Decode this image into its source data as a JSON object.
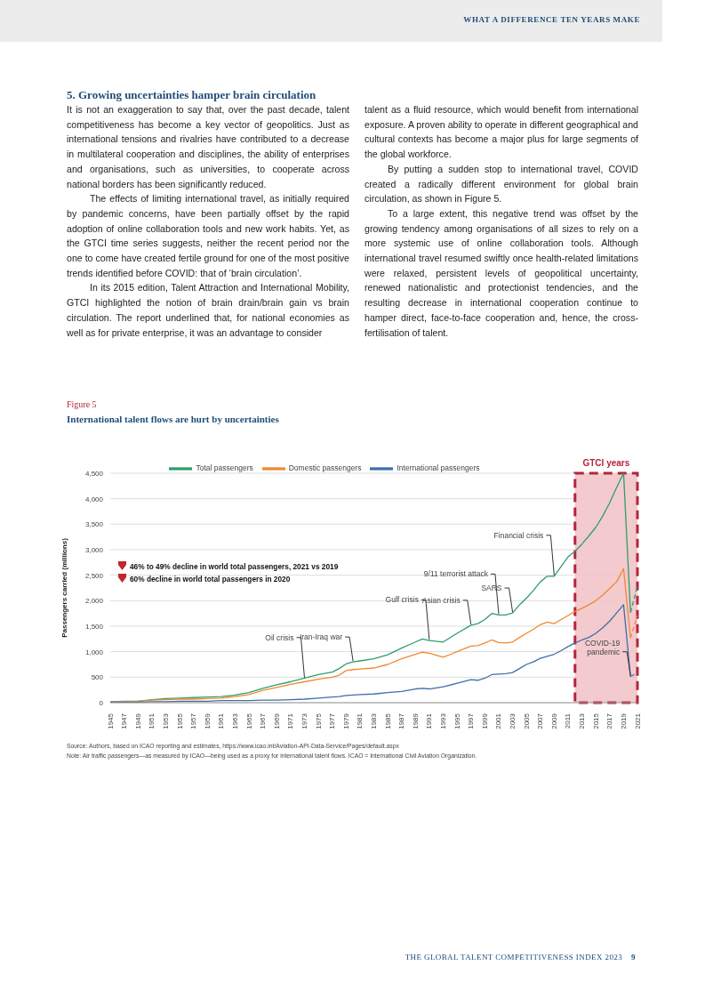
{
  "chart_data": {
    "type": "line",
    "subtitle": "Figure 5",
    "title": "International talent flows are hurt by uncertainties",
    "ylabel": "Passengers carried (millions)",
    "xlim": [
      1945,
      2021
    ],
    "xticks": [
      1945,
      1947,
      1949,
      1951,
      1953,
      1955,
      1957,
      1959,
      1961,
      1963,
      1965,
      1967,
      1969,
      1971,
      1973,
      1975,
      1977,
      1979,
      1981,
      1983,
      1985,
      1987,
      1989,
      1991,
      1993,
      1995,
      1997,
      1999,
      2001,
      2003,
      2005,
      2007,
      2009,
      2011,
      2013,
      2015,
      2017,
      2019,
      2021
    ],
    "ylim": [
      0,
      4500
    ],
    "yticks": [
      0,
      {
        "value": 500,
        "label": "500"
      },
      {
        "value": 1000,
        "label": "1,000"
      },
      {
        "value": 1500,
        "label": "1,500"
      },
      {
        "value": 2000,
        "label": "2,000"
      },
      {
        "value": 2500,
        "label": "2,500"
      },
      {
        "value": 3000,
        "label": "3,000"
      },
      {
        "value": 3500,
        "label": "3,500"
      },
      {
        "value": 4000,
        "label": "4,000"
      },
      {
        "value": 4500,
        "label": "4,500"
      }
    ],
    "grid": "y",
    "legend": "top",
    "line_style": "solid",
    "series": [
      {
        "name": "Total passengers",
        "color": "#2e9e6e",
        "x": [
          1945,
          1947,
          1949,
          1951,
          1953,
          1955,
          1957,
          1959,
          1961,
          1963,
          1965,
          1967,
          1969,
          1971,
          1973,
          1975,
          1977,
          1978,
          1979,
          1980,
          1981,
          1983,
          1985,
          1987,
          1989,
          1990,
          1991,
          1993,
          1995,
          1997,
          1998,
          1999,
          2000,
          2001,
          2002,
          2003,
          2004,
          2005,
          2006,
          2007,
          2008,
          2009,
          2010,
          2011,
          2012,
          2013,
          2014,
          2015,
          2016,
          2017,
          2018,
          2019,
          2020
        ],
        "values": [
          20,
          30,
          30,
          60,
          80,
          90,
          100,
          110,
          120,
          150,
          200,
          280,
          350,
          410,
          480,
          550,
          600,
          670,
          760,
          800,
          820,
          860,
          940,
          1070,
          1190,
          1250,
          1220,
          1190,
          1360,
          1520,
          1550,
          1630,
          1750,
          1720,
          1720,
          1760,
          1920,
          2050,
          2200,
          2370,
          2480,
          2480,
          2670,
          2860,
          2970,
          3110,
          3270,
          3440,
          3660,
          3920,
          4220,
          4500,
          1770
        ]
      },
      {
        "name": "Domestic passengers",
        "color": "#f08a30",
        "x": [
          1945,
          1947,
          1949,
          1951,
          1953,
          1955,
          1957,
          1959,
          1961,
          1963,
          1965,
          1967,
          1969,
          1971,
          1973,
          1975,
          1977,
          1978,
          1979,
          1980,
          1981,
          1983,
          1985,
          1987,
          1989,
          1990,
          1991,
          1993,
          1995,
          1997,
          1998,
          1999,
          2000,
          2001,
          2002,
          2003,
          2004,
          2005,
          2006,
          2007,
          2008,
          2009,
          2010,
          2011,
          2012,
          2013,
          2014,
          2015,
          2016,
          2017,
          2018,
          2019,
          2020
        ],
        "values": [
          20,
          20,
          30,
          50,
          60,
          70,
          70,
          80,
          90,
          120,
          160,
          240,
          300,
          360,
          410,
          460,
          500,
          540,
          630,
          650,
          660,
          680,
          750,
          860,
          950,
          990,
          970,
          890,
          1000,
          1110,
          1120,
          1170,
          1230,
          1180,
          1170,
          1190,
          1280,
          1360,
          1440,
          1530,
          1580,
          1550,
          1630,
          1710,
          1790,
          1850,
          1920,
          2000,
          2110,
          2240,
          2370,
          2630,
          1270
        ]
      },
      {
        "name": "International passengers",
        "color": "#3e6fa8",
        "x": [
          1945,
          1947,
          1949,
          1951,
          1953,
          1955,
          1957,
          1959,
          1961,
          1963,
          1965,
          1967,
          1969,
          1971,
          1973,
          1975,
          1977,
          1978,
          1979,
          1980,
          1981,
          1983,
          1985,
          1987,
          1989,
          1990,
          1991,
          1993,
          1995,
          1997,
          1998,
          1999,
          2000,
          2001,
          2002,
          2003,
          2004,
          2005,
          2006,
          2007,
          2008,
          2009,
          2010,
          2011,
          2012,
          2013,
          2014,
          2015,
          2016,
          2017,
          2018,
          2019,
          2020
        ],
        "values": [
          10,
          10,
          10,
          20,
          20,
          30,
          30,
          30,
          40,
          40,
          40,
          50,
          50,
          60,
          70,
          90,
          110,
          120,
          140,
          150,
          160,
          170,
          200,
          220,
          270,
          280,
          270,
          310,
          380,
          450,
          440,
          480,
          550,
          560,
          570,
          590,
          670,
          750,
          800,
          870,
          910,
          950,
          1020,
          1100,
          1170,
          1230,
          1280,
          1360,
          1470,
          1600,
          1760,
          1920,
          510
        ]
      },
      {
        "color": "#2e9e6e",
        "line_style": "dashed",
        "x": [
          2020,
          2021
        ],
        "values": [
          1770,
          2280
        ]
      },
      {
        "color": "#f08a30",
        "line_style": "dashed",
        "x": [
          2020,
          2021
        ],
        "values": [
          1270,
          1710
        ]
      },
      {
        "color": "#3e6fa8",
        "line_style": "dashed",
        "x": [
          2020,
          2021
        ],
        "values": [
          510,
          590
        ]
      }
    ],
    "bands": [
      {
        "axis": "x",
        "from": 2012,
        "to": 2021,
        "label": "GTCI years",
        "color": "#f2c4c9"
      }
    ],
    "annotations": [
      "WHAT A DIFFERENCE TEN YEARS MAKE",
      "5. Growing uncertainties hamper brain circulation",
      "It is not an exaggeration to say that, over the past decade, talent competitiveness has become a key vector of geopolitics. Just as international tensions and rivalries have contributed to a decrease in multilateral cooperation and disciplines, the ability of enterprises and organisations, such as universities, to cooperate across national borders has been significantly reduced.",
      "The effects of limiting international travel, as initially required by pandemic concerns, have been partially offset by the rapid adoption of online collaboration tools and new work habits. Yet, as the GTCI time series suggests, neither the recent period nor the one to come have created fertile ground for one of the most positive trends identified before COVID: that of ‘brain circulation’.",
      "In its 2015 edition, Talent Attraction and International Mobility, GTCI highlighted the notion of brain drain/brain gain vs brain circulation. The report underlined that, for national economies as well as for private enterprise, it was an advantage to consider",
      "talent as a fluid resource, which would benefit from international exposure. A proven ability to operate in different geographical and cultural contexts has become a major plus for large segments of the global workforce.",
      "By putting a sudden stop to international travel, COVID created a radically different environment for global brain circulation, as shown in Figure 5.",
      "To a large extent, this negative trend was offset by the growing tendency among organisations of all sizes to rely on a more systemic use of online collaboration tools. Although international travel resumed swiftly once health-related limitations were relaxed, persistent levels of geopolitical uncertainty, renewed nationalistic and protectionist tendencies, and the resulting decrease in international cooperation continue to hamper direct, face-to-face cooperation and, hence, the cross-fertilisation of talent.",
      "46% to 49% decline in world total passengers, 2021 vs 2019",
      "60% decline in world total passengers in 2020",
      "Source: Authors, based on ICAO reporting and estimates, https://www.icao.int/Aviation-API-Data-Service/Pages/default.aspx",
      "Note: Air traffic passengers—as measured by ICAO—being used as a proxy for international talent flows. ICAO = International Civil Aviation Organization.",
      "THE GLOBAL TALENT COMPETITIVENESS INDEX 2023",
      "9",
      {
        "text": "Oil crisis",
        "x": 1973,
        "y": 475
      },
      {
        "text": "Iran-Iraq war",
        "x": 1980,
        "y": 800
      },
      {
        "text": "Gulf crisis",
        "x": 1991,
        "y": 1215
      },
      {
        "text": "Asian crisis",
        "x": 1997,
        "y": 1520
      },
      {
        "text": "9/11 terrorist attack",
        "x": 2001,
        "y": 1720
      },
      {
        "text": "SARS",
        "x": 2003,
        "y": 1760
      },
      {
        "text": "Financial crisis",
        "x": 2009,
        "y": 2480
      },
      {
        "text": "COVID-19 pandemic",
        "x": 2020,
        "y": 510
      }
    ]
  }
}
